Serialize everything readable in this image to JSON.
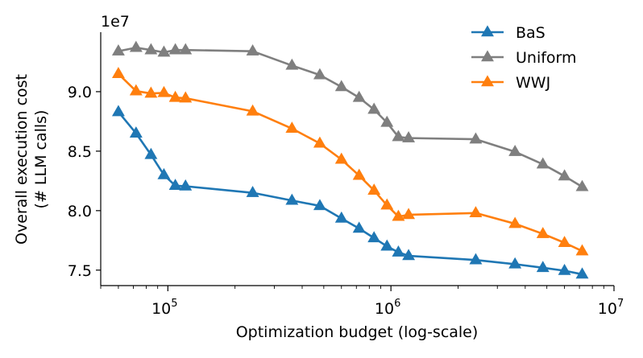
{
  "chart_data": {
    "type": "line",
    "title": "",
    "xlabel": "Optimization budget (log-scale)",
    "ylabel_line1": "Overall execution cost",
    "ylabel_line2": "(# LLM calls)",
    "x_scale": "log",
    "xlim": [
      50000,
      10000000
    ],
    "ylim": [
      73700000,
      95000000
    ],
    "y_offset_text": "1e7",
    "x_ticks": [
      {
        "value": 100000,
        "base": "10",
        "exp": "5"
      },
      {
        "value": 1000000,
        "base": "10",
        "exp": "6"
      },
      {
        "value": 10000000,
        "base": "10",
        "exp": "7"
      }
    ],
    "y_ticks": [
      {
        "value": 75000000,
        "label": "7.5"
      },
      {
        "value": 80000000,
        "label": "8.0"
      },
      {
        "value": 85000000,
        "label": "8.5"
      },
      {
        "value": 90000000,
        "label": "9.0"
      }
    ],
    "grid": false,
    "legend_position": "top-right",
    "series": [
      {
        "name": "BaS",
        "color": "#1f77b4",
        "x": [
          60000,
          72000,
          84000,
          96000,
          108000,
          120000,
          240000,
          360000,
          480000,
          600000,
          720000,
          840000,
          960000,
          1080000,
          1200000,
          2400000,
          3600000,
          4800000,
          6000000,
          7200000
        ],
        "y": [
          88300000,
          86500000,
          84700000,
          83000000,
          82100000,
          82050000,
          81500000,
          80850000,
          80400000,
          79350000,
          78500000,
          77700000,
          77000000,
          76500000,
          76200000,
          75850000,
          75500000,
          75200000,
          74950000,
          74650000
        ]
      },
      {
        "name": "Uniform",
        "color": "#7f7f7f",
        "x": [
          60000,
          72000,
          84000,
          96000,
          108000,
          120000,
          240000,
          360000,
          480000,
          600000,
          720000,
          840000,
          960000,
          1080000,
          1200000,
          2400000,
          3600000,
          4800000,
          6000000,
          7200000
        ],
        "y": [
          93400000,
          93700000,
          93500000,
          93300000,
          93500000,
          93500000,
          93400000,
          92200000,
          91400000,
          90400000,
          89500000,
          88500000,
          87400000,
          86200000,
          86100000,
          86000000,
          84950000,
          83900000,
          82900000,
          82000000
        ]
      },
      {
        "name": "WWJ",
        "color": "#ff7f0e",
        "x": [
          60000,
          72000,
          84000,
          96000,
          108000,
          120000,
          240000,
          360000,
          480000,
          600000,
          720000,
          840000,
          960000,
          1080000,
          1200000,
          2400000,
          3600000,
          4800000,
          6000000,
          7200000
        ],
        "y": [
          91500000,
          90050000,
          89850000,
          89900000,
          89500000,
          89450000,
          88350000,
          86900000,
          85650000,
          84300000,
          82950000,
          81700000,
          80450000,
          79500000,
          79650000,
          79800000,
          78900000,
          78050000,
          77300000,
          76600000
        ]
      }
    ]
  }
}
